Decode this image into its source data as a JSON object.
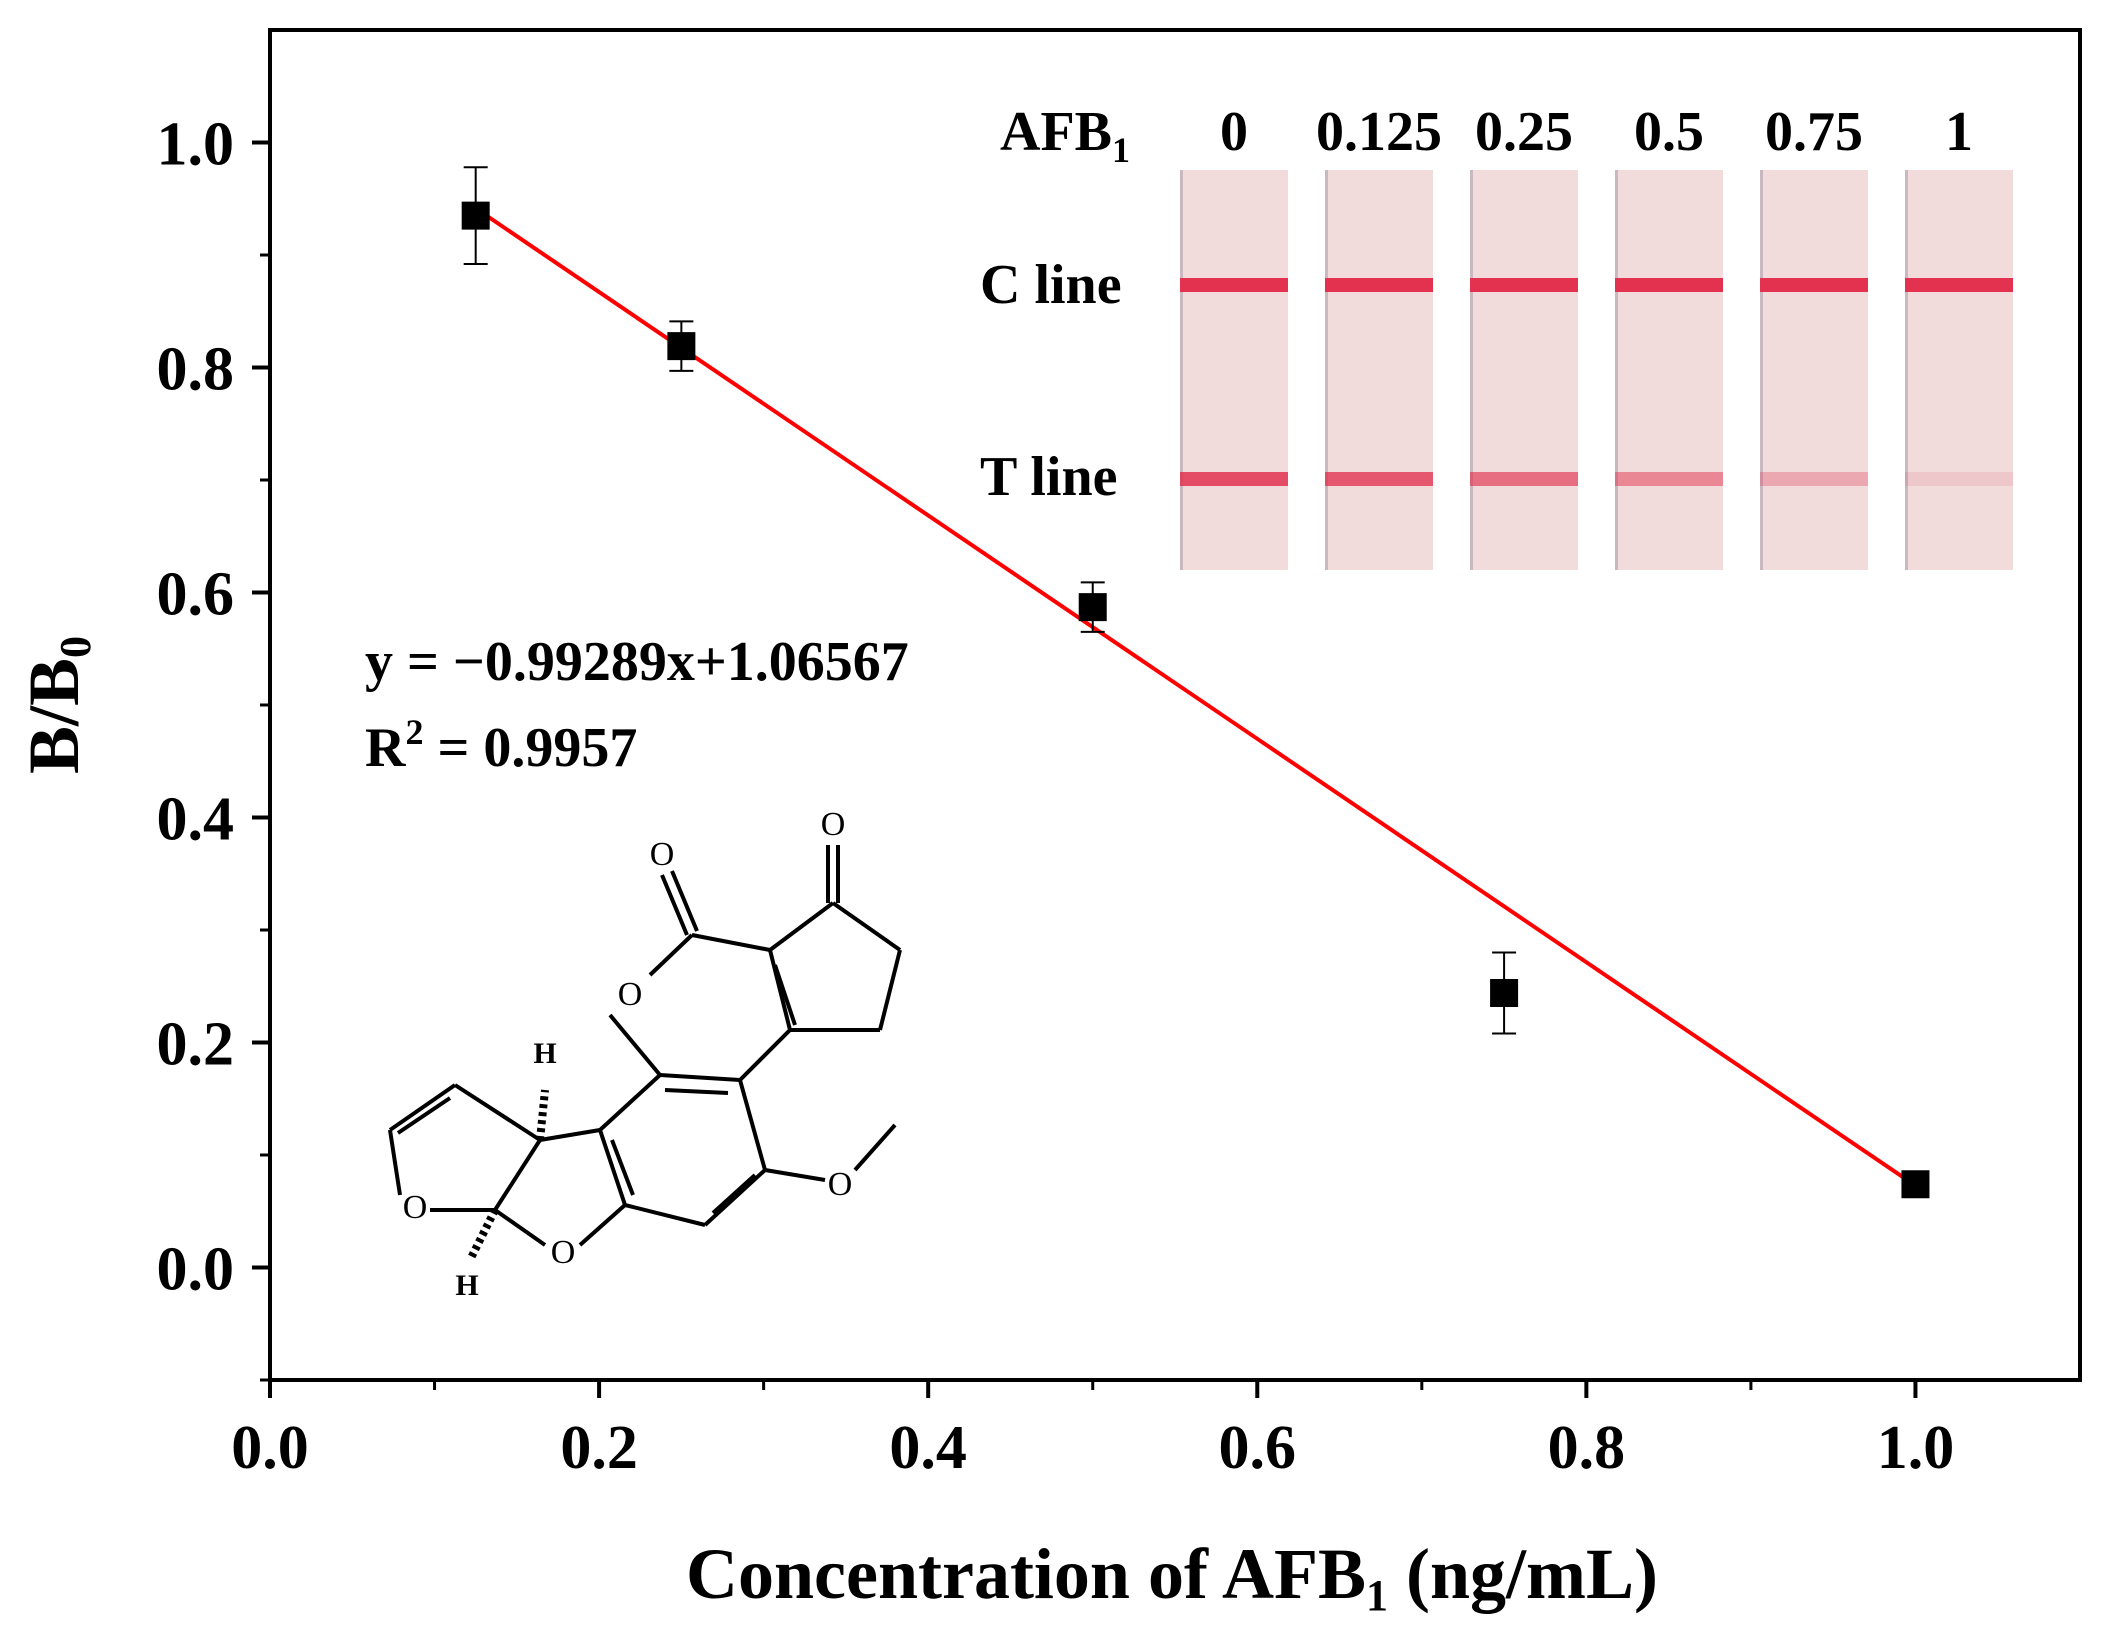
{
  "chart_data": {
    "type": "scatter",
    "xlabel": "Concentration of AFB",
    "xlabel_sub": "1",
    "xlabel_tail": " (ng/mL)",
    "ylabel": "B/B",
    "ylabel_sub": "0",
    "xlim": [
      0.0,
      1.1
    ],
    "ylim": [
      -0.1,
      1.1
    ],
    "x_ticks": [
      "0.0",
      "0.2",
      "0.4",
      "0.6",
      "0.8",
      "1.0"
    ],
    "y_ticks": [
      "0.0",
      "0.2",
      "0.4",
      "0.6",
      "0.8",
      "1.0"
    ],
    "series": [
      {
        "points": [
          {
            "x": 0.125,
            "y": 0.935,
            "err": 0.043
          },
          {
            "x": 0.25,
            "y": 0.819,
            "err": 0.022
          },
          {
            "x": 0.5,
            "y": 0.587,
            "err": 0.022
          },
          {
            "x": 0.75,
            "y": 0.244,
            "err": 0.036
          },
          {
            "x": 1.0,
            "y": 0.074,
            "err": 0.0
          }
        ],
        "marker": "square",
        "color": "#000000"
      }
    ],
    "fit": {
      "slope": -0.99289,
      "intercept": 1.06567,
      "x_range": [
        0.125,
        1.0
      ],
      "color": "#ff0000"
    },
    "annotations": {
      "equation": "y = −0.99289x+1.06567",
      "r2_prefix": "R",
      "r2_sup": "2",
      "r2_suffix": " = 0.9957"
    },
    "grid": false
  },
  "inset": {
    "analyte_label": "AFB",
    "analyte_sub": "1",
    "concentrations": [
      "0",
      "0.125",
      "0.25",
      "0.5",
      "0.75",
      "1"
    ],
    "c_line_label": "C line",
    "t_line_label": "T line",
    "t_line_intensity": [
      0.85,
      0.78,
      0.65,
      0.5,
      0.3,
      0.12
    ],
    "strip_color": "#f1dcdb",
    "line_color": "#e23250"
  },
  "structure": {
    "atoms": {
      "o1": "O",
      "o2": "O",
      "o_ring": "O",
      "o_furan1": "O",
      "o_furan2": "O",
      "o_methoxy": "O",
      "h_top": "H",
      "h_bottom": "H"
    }
  }
}
